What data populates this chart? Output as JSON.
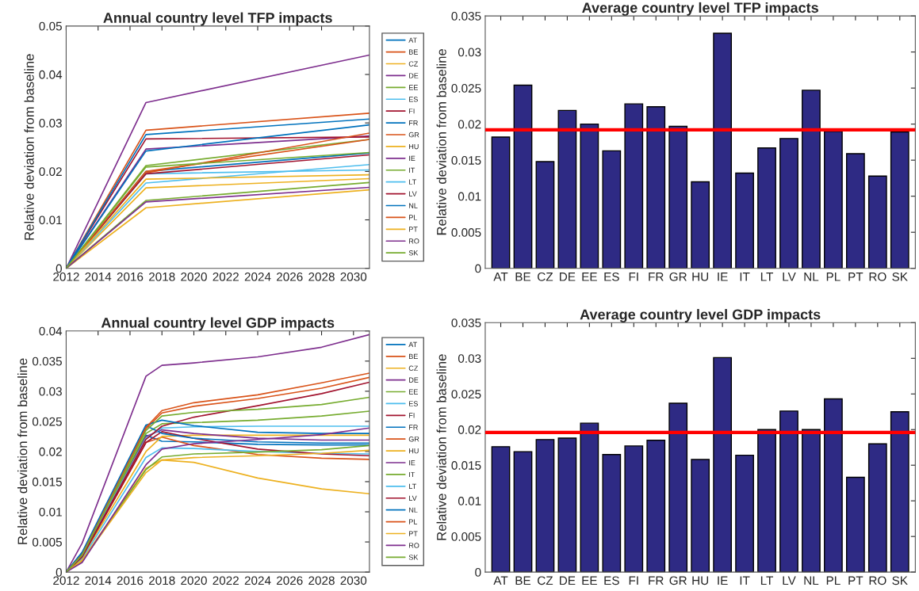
{
  "chart_data": [
    {
      "type": "line",
      "title": "Annual country level TFP impacts",
      "ylabel": "Relative deviation from baseline",
      "x": [
        2012,
        2017,
        2031
      ],
      "xlim": [
        2012,
        2031
      ],
      "xticks": [
        2012,
        2014,
        2016,
        2018,
        2020,
        2022,
        2024,
        2026,
        2028,
        2030
      ],
      "ylim": [
        0,
        0.05
      ],
      "yticks": [
        0,
        0.01,
        0.02,
        0.03,
        0.04,
        0.05
      ],
      "legend": "right",
      "grid": false,
      "series": [
        {
          "name": "AT",
          "color": "#0072bd",
          "values": [
            0,
            0.02,
            0.0238
          ]
        },
        {
          "name": "BE",
          "color": "#d95319",
          "values": [
            0,
            0.0285,
            0.032
          ]
        },
        {
          "name": "CZ",
          "color": "#edb120",
          "values": [
            0,
            0.0166,
            0.0185
          ]
        },
        {
          "name": "DE",
          "color": "#7e2f8e",
          "values": [
            0,
            0.0246,
            0.0273
          ]
        },
        {
          "name": "EE",
          "color": "#77ac30",
          "values": [
            0,
            0.0212,
            0.0266
          ]
        },
        {
          "name": "ES",
          "color": "#4dbeee",
          "values": [
            0,
            0.0176,
            0.0214
          ]
        },
        {
          "name": "FI",
          "color": "#a2142f",
          "values": [
            0,
            0.0267,
            0.0271
          ]
        },
        {
          "name": "FR",
          "color": "#0072bd",
          "values": [
            0,
            0.0242,
            0.0296
          ]
        },
        {
          "name": "GR",
          "color": "#d95319",
          "values": [
            0,
            0.0197,
            0.0279
          ]
        },
        {
          "name": "HU",
          "color": "#edb120",
          "values": [
            0,
            0.0125,
            0.0162
          ]
        },
        {
          "name": "IE",
          "color": "#7e2f8e",
          "values": [
            0,
            0.0342,
            0.044
          ]
        },
        {
          "name": "IT",
          "color": "#77ac30",
          "values": [
            0,
            0.014,
            0.0177
          ]
        },
        {
          "name": "LT",
          "color": "#4dbeee",
          "values": [
            0,
            0.0195,
            0.0203
          ]
        },
        {
          "name": "LV",
          "color": "#a2142f",
          "values": [
            0,
            0.0195,
            0.0234
          ]
        },
        {
          "name": "NL",
          "color": "#0072bd",
          "values": [
            0,
            0.0276,
            0.0308
          ]
        },
        {
          "name": "PL",
          "color": "#d95319",
          "values": [
            0,
            0.02,
            0.0266
          ]
        },
        {
          "name": "PT",
          "color": "#edb120",
          "values": [
            0,
            0.0184,
            0.0193
          ]
        },
        {
          "name": "RO",
          "color": "#7e2f8e",
          "values": [
            0,
            0.0137,
            0.0167
          ]
        },
        {
          "name": "SK",
          "color": "#77ac30",
          "values": [
            0,
            0.0209,
            0.0239
          ]
        }
      ]
    },
    {
      "type": "bar",
      "title": "Average country level TFP impacts",
      "ylabel": "Relative deviation from baseline",
      "categories": [
        "AT",
        "BE",
        "CZ",
        "DE",
        "EE",
        "ES",
        "FI",
        "FR",
        "GR",
        "HU",
        "IE",
        "IT",
        "LT",
        "LV",
        "NL",
        "PL",
        "PT",
        "RO",
        "SK"
      ],
      "values": [
        0.0182,
        0.0254,
        0.0148,
        0.0219,
        0.02,
        0.0163,
        0.0228,
        0.0224,
        0.0197,
        0.012,
        0.0326,
        0.0132,
        0.0167,
        0.018,
        0.0247,
        0.019,
        0.0159,
        0.0128,
        0.0189
      ],
      "color": "#2e2a84",
      "ylim": [
        0,
        0.035
      ],
      "yticks": [
        0,
        0.005,
        0.01,
        0.015,
        0.02,
        0.025,
        0.03,
        0.035
      ],
      "grid": false,
      "ref_lines": [
        {
          "axis": "y",
          "value": 0.0192,
          "color": "#ff0000"
        }
      ]
    },
    {
      "type": "line",
      "title": "Annual country level GDP impacts",
      "ylabel": "Relative deviation from baseline",
      "x": [
        2012,
        2013,
        2017,
        2018,
        2020,
        2024,
        2028,
        2031
      ],
      "xlim": [
        2012,
        2031
      ],
      "xticks": [
        2012,
        2014,
        2016,
        2018,
        2020,
        2022,
        2024,
        2026,
        2028,
        2030
      ],
      "ylim": [
        0,
        0.04
      ],
      "yticks": [
        0,
        0.005,
        0.01,
        0.015,
        0.02,
        0.025,
        0.03,
        0.035,
        0.04
      ],
      "legend": "right",
      "grid": false,
      "series": [
        {
          "name": "AT",
          "color": "#0072bd",
          "values": [
            0,
            0.003,
            0.0227,
            0.0217,
            0.0216,
            0.0212,
            0.0211,
            0.0211
          ]
        },
        {
          "name": "BE",
          "color": "#d95319",
          "values": [
            0,
            0.0025,
            0.0215,
            0.0224,
            0.021,
            0.0195,
            0.0189,
            0.0187
          ]
        },
        {
          "name": "CZ",
          "color": "#edb120",
          "values": [
            0,
            0.0025,
            0.02,
            0.0225,
            0.0227,
            0.0227,
            0.0227,
            0.0227
          ]
        },
        {
          "name": "DE",
          "color": "#7e2f8e",
          "values": [
            0,
            0.0028,
            0.0225,
            0.0236,
            0.023,
            0.0222,
            0.0219,
            0.0219
          ]
        },
        {
          "name": "EE",
          "color": "#77ac30",
          "values": [
            0,
            0.0027,
            0.023,
            0.0246,
            0.0248,
            0.0252,
            0.0259,
            0.0267
          ]
        },
        {
          "name": "ES",
          "color": "#4dbeee",
          "values": [
            0,
            0.0022,
            0.019,
            0.0206,
            0.0205,
            0.02,
            0.0197,
            0.0196
          ]
        },
        {
          "name": "FI",
          "color": "#a2142f",
          "values": [
            0,
            0.0025,
            0.0215,
            0.0233,
            0.0222,
            0.0204,
            0.0196,
            0.0193
          ]
        },
        {
          "name": "FR",
          "color": "#0072bd",
          "values": [
            0,
            0.0032,
            0.0243,
            0.023,
            0.0222,
            0.0216,
            0.0214,
            0.0214
          ]
        },
        {
          "name": "GR",
          "color": "#d95319",
          "values": [
            0,
            0.0027,
            0.0238,
            0.0264,
            0.0275,
            0.0288,
            0.0305,
            0.0323
          ]
        },
        {
          "name": "HU",
          "color": "#edb120",
          "values": [
            0,
            0.002,
            0.0172,
            0.0186,
            0.019,
            0.0193,
            0.0197,
            0.0202
          ]
        },
        {
          "name": "IE",
          "color": "#7e2f8e",
          "values": [
            0,
            0.0048,
            0.0325,
            0.0343,
            0.0347,
            0.0357,
            0.0373,
            0.0394
          ]
        },
        {
          "name": "IT",
          "color": "#77ac30",
          "values": [
            0,
            0.0018,
            0.017,
            0.0191,
            0.0196,
            0.0199,
            0.0203,
            0.021
          ]
        },
        {
          "name": "LT",
          "color": "#4dbeee",
          "values": [
            0,
            0.0028,
            0.0222,
            0.0239,
            0.0241,
            0.0242,
            0.0242,
            0.0242
          ]
        },
        {
          "name": "LV",
          "color": "#a2142f",
          "values": [
            0,
            0.0026,
            0.022,
            0.0242,
            0.0257,
            0.0276,
            0.0296,
            0.0315
          ]
        },
        {
          "name": "NL",
          "color": "#0072bd",
          "values": [
            0,
            0.0033,
            0.0244,
            0.0252,
            0.0243,
            0.0232,
            0.023,
            0.023
          ]
        },
        {
          "name": "PL",
          "color": "#d95319",
          "values": [
            0,
            0.0029,
            0.024,
            0.0268,
            0.0281,
            0.0294,
            0.0314,
            0.033
          ]
        },
        {
          "name": "PT",
          "color": "#edb120",
          "values": [
            0,
            0.0019,
            0.0165,
            0.0186,
            0.0182,
            0.0156,
            0.0138,
            0.013
          ]
        },
        {
          "name": "RO",
          "color": "#7e2f8e",
          "values": [
            0,
            0.0016,
            0.0178,
            0.0204,
            0.0213,
            0.022,
            0.0228,
            0.0239
          ]
        },
        {
          "name": "SK",
          "color": "#77ac30",
          "values": [
            0,
            0.0028,
            0.0235,
            0.0259,
            0.0265,
            0.027,
            0.0278,
            0.029
          ]
        }
      ]
    },
    {
      "type": "bar",
      "title": "Average country level GDP impacts",
      "ylabel": "Relative deviation from baseline",
      "categories": [
        "AT",
        "BE",
        "CZ",
        "DE",
        "EE",
        "ES",
        "FI",
        "FR",
        "GR",
        "HU",
        "IE",
        "IT",
        "LT",
        "LV",
        "NL",
        "PL",
        "PT",
        "RO",
        "SK"
      ],
      "values": [
        0.0176,
        0.0169,
        0.0186,
        0.0188,
        0.0209,
        0.0165,
        0.0177,
        0.0185,
        0.0237,
        0.0158,
        0.0301,
        0.0164,
        0.02,
        0.0226,
        0.02,
        0.0243,
        0.0133,
        0.018,
        0.0225
      ],
      "color": "#2e2a84",
      "ylim": [
        0,
        0.035
      ],
      "yticks": [
        0,
        0.005,
        0.01,
        0.015,
        0.02,
        0.025,
        0.03,
        0.035
      ],
      "grid": false,
      "ref_lines": [
        {
          "axis": "y",
          "value": 0.0196,
          "color": "#ff0000"
        }
      ]
    }
  ]
}
